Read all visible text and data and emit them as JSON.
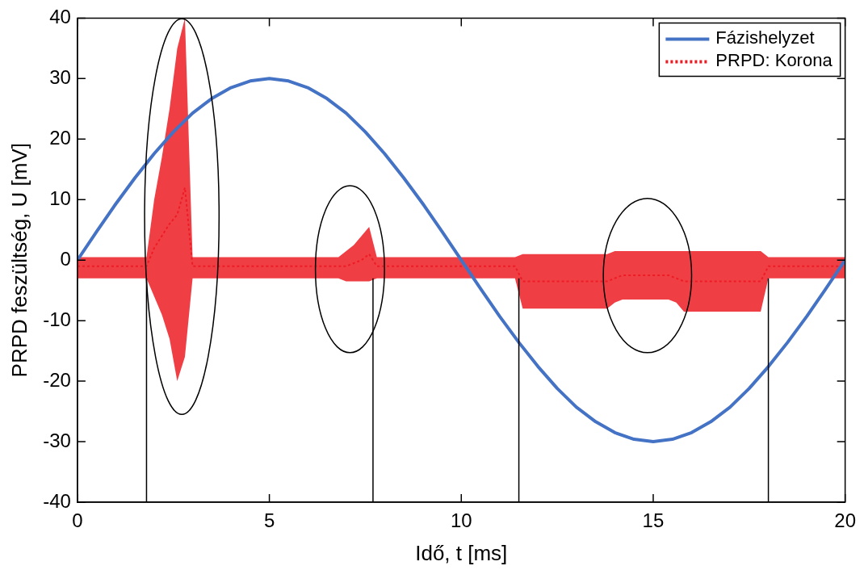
{
  "chart_data": {
    "type": "line",
    "xlabel": "Idő, t [ms]",
    "ylabel": "PRPD feszültség, U [mV]",
    "xlim": [
      0,
      20
    ],
    "xticks": [
      0,
      5,
      10,
      15,
      20
    ],
    "ylim": [
      -40,
      40
    ],
    "yticks": [
      -40,
      -30,
      -20,
      -10,
      0,
      10,
      20,
      30,
      40
    ],
    "grid": false,
    "legend": "top right",
    "series": [
      {
        "name": "Fázishelyzet",
        "color": "#4472c4",
        "line_style": "solid",
        "x": [
          0,
          0.5,
          1,
          1.5,
          2,
          2.5,
          3,
          3.5,
          4,
          4.5,
          5,
          5.5,
          6,
          6.5,
          7,
          7.5,
          8,
          8.5,
          9,
          9.5,
          10,
          10.5,
          11,
          11.5,
          12,
          12.5,
          13,
          13.5,
          14,
          14.5,
          15,
          15.5,
          16,
          16.5,
          17,
          17.5,
          18,
          18.5,
          19,
          19.5,
          20
        ],
        "values": [
          0,
          4.7,
          9.3,
          13.6,
          17.6,
          21.2,
          24.3,
          26.7,
          28.5,
          29.6,
          30,
          29.6,
          28.5,
          26.7,
          24.3,
          21.2,
          17.6,
          13.6,
          9.3,
          4.7,
          0,
          -4.7,
          -9.3,
          -13.6,
          -17.6,
          -21.2,
          -24.3,
          -26.7,
          -28.5,
          -29.6,
          -30,
          -29.6,
          -28.5,
          -26.7,
          -24.3,
          -21.2,
          -17.6,
          -13.6,
          -9.3,
          -4.7,
          0
        ]
      },
      {
        "name": "PRPD: Korona",
        "color": "#ed1c24",
        "line_style": "dotted",
        "x": [
          0,
          0.2,
          0.4,
          0.6,
          0.8,
          1,
          1.2,
          1.4,
          1.6,
          1.8,
          2,
          2.2,
          2.4,
          2.6,
          2.8,
          3,
          3.2,
          3.4,
          3.6,
          3.8,
          4,
          4.2,
          4.4,
          4.6,
          4.8,
          5,
          5.2,
          5.4,
          5.6,
          5.8,
          6,
          6.2,
          6.4,
          6.6,
          6.8,
          7,
          7.2,
          7.4,
          7.6,
          7.8,
          8,
          8.2,
          8.4,
          8.6,
          8.8,
          9,
          9.2,
          9.4,
          9.6,
          9.8,
          10,
          10.2,
          10.4,
          10.6,
          10.8,
          11,
          11.2,
          11.4,
          11.6,
          11.8,
          12,
          12.2,
          12.4,
          12.6,
          12.8,
          13,
          13.2,
          13.4,
          13.6,
          13.8,
          14,
          14.2,
          14.4,
          14.6,
          14.8,
          15,
          15.2,
          15.4,
          15.6,
          15.8,
          16,
          16.2,
          16.4,
          16.6,
          16.8,
          17,
          17.2,
          17.4,
          17.6,
          17.8,
          18,
          18.2,
          18.4,
          18.6,
          18.8,
          19,
          19.2,
          19.4,
          19.6,
          19.8,
          20
        ],
        "values": [
          -1,
          -1,
          -1,
          -1,
          -1,
          -1,
          -1,
          -1,
          -1,
          -1,
          2,
          4,
          6,
          7.5,
          12,
          -1,
          -1,
          -1,
          -1,
          -1,
          -1,
          -1,
          -1,
          -1,
          -1,
          -1,
          -1,
          -1,
          -1,
          -1,
          -1,
          -1,
          -1,
          -1,
          -1,
          -1,
          -0.5,
          0,
          1,
          -1,
          -1,
          -1,
          -1,
          -1,
          -1,
          -1,
          -1,
          -1,
          -1,
          -1,
          -1,
          -1,
          -1,
          -1,
          -1,
          -1,
          -1,
          -1,
          -3.5,
          -3.5,
          -3.5,
          -3.5,
          -3.5,
          -3.5,
          -3.5,
          -3.5,
          -3.5,
          -3.5,
          -3.5,
          -3.5,
          -3,
          -2.5,
          -2.5,
          -2.5,
          -2.5,
          -2.5,
          -2.5,
          -2.5,
          -3,
          -3.5,
          -3.5,
          -3.5,
          -3.5,
          -3.5,
          -3.5,
          -3.5,
          -3.5,
          -3.5,
          -3.5,
          -3.5,
          -1,
          -1,
          -1,
          -1,
          -1,
          -1,
          -1,
          -1,
          -1,
          -1,
          -1
        ],
        "lower": [
          -3,
          -3,
          -3,
          -3,
          -3,
          -3,
          -3,
          -3,
          -3,
          -3,
          -6,
          -9,
          -13,
          -20,
          -16,
          -3,
          -3,
          -3,
          -3,
          -3,
          -3,
          -3,
          -3,
          -3,
          -3,
          -3,
          -3,
          -3,
          -3,
          -3,
          -3,
          -3,
          -3,
          -3,
          -3,
          -3.5,
          -3.5,
          -3.5,
          -3.5,
          -3,
          -3,
          -3,
          -3,
          -3,
          -3,
          -3,
          -3,
          -3,
          -3,
          -3,
          -3,
          -3,
          -3,
          -3,
          -3,
          -3,
          -3,
          -3,
          -8,
          -8,
          -8,
          -8,
          -8,
          -8,
          -8,
          -8,
          -8,
          -8,
          -8,
          -8,
          -7,
          -6.5,
          -6.5,
          -6.5,
          -6.5,
          -6.5,
          -6.5,
          -6.5,
          -7,
          -8.5,
          -8.5,
          -8.5,
          -8.5,
          -8.5,
          -8.5,
          -8.5,
          -8.5,
          -8.5,
          -8.5,
          -8.5,
          -3,
          -3,
          -3,
          -3,
          -3,
          -3,
          -3,
          -3,
          -3,
          -3,
          -3
        ],
        "upper": [
          0.5,
          0.5,
          0.5,
          0.5,
          0.5,
          0.5,
          0.5,
          0.5,
          0.5,
          0.5,
          10,
          17,
          25,
          35,
          40,
          0.5,
          0.5,
          0.5,
          0.5,
          0.5,
          0.5,
          0.5,
          0.5,
          0.5,
          0.5,
          0.5,
          0.5,
          0.5,
          0.5,
          0.5,
          0.5,
          0.5,
          0.5,
          0.5,
          0.5,
          1.5,
          2.5,
          4,
          5.5,
          0.5,
          0.5,
          0.5,
          0.5,
          0.5,
          0.5,
          0.5,
          0.5,
          0.5,
          0.5,
          0.5,
          0.5,
          0.5,
          0.5,
          0.5,
          0.5,
          0.5,
          0.5,
          0.5,
          1,
          1,
          1,
          1,
          1,
          1,
          1,
          1,
          1,
          1,
          1,
          1,
          1.5,
          1.5,
          1.5,
          1.5,
          1.5,
          1.5,
          1.5,
          1.5,
          1.5,
          1.5,
          1.5,
          1.5,
          1.5,
          1.5,
          1.5,
          1.5,
          1.5,
          1.5,
          1.5,
          1.5,
          0.5,
          0.5,
          0.5,
          0.5,
          0.5,
          0.5,
          0.5,
          0.5,
          0.5,
          0.5,
          0.5
        ]
      }
    ],
    "ref_lines": [
      {
        "axis": "x",
        "value": 1.8,
        "color": "#000000"
      },
      {
        "axis": "x",
        "value": 7.7,
        "color": "#000000"
      },
      {
        "axis": "x",
        "value": 11.5,
        "color": "#000000"
      },
      {
        "axis": "x",
        "value": 18,
        "color": "#000000"
      }
    ]
  }
}
